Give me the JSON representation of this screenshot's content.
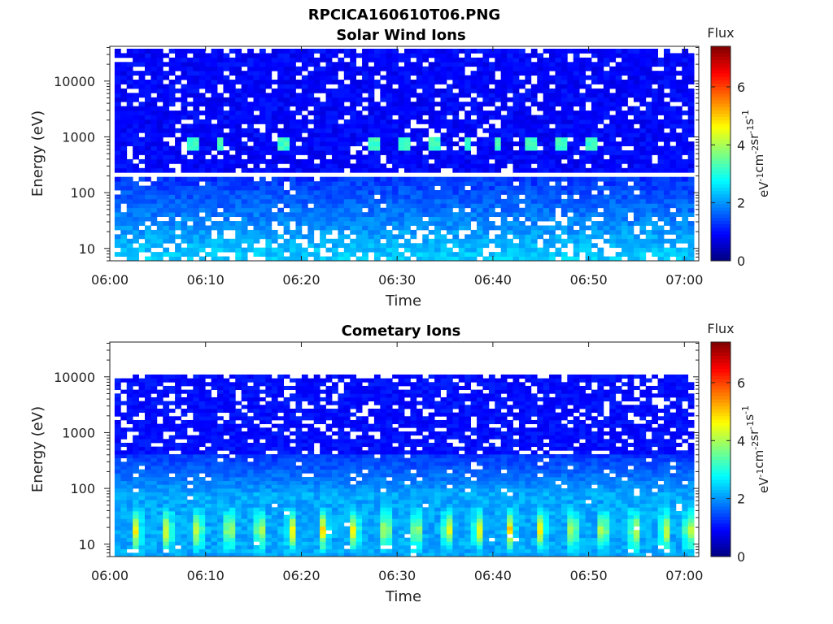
{
  "figure": {
    "title": "RPCICA160610T06.PNG"
  },
  "chart_data": [
    {
      "type": "heatmap",
      "title": "Solar Wind Ions",
      "xlabel": "Time",
      "ylabel": "Energy (eV)",
      "x_ticks": [
        "06:00",
        "06:10",
        "06:20",
        "06:30",
        "06:40",
        "06:50",
        "07:00"
      ],
      "x_range_minutes": [
        0,
        61.5
      ],
      "y_scale": "log",
      "y_ticks": [
        10,
        100,
        1000,
        10000
      ],
      "y_tick_labels": [
        "10",
        "100",
        "1000",
        "10000"
      ],
      "y_range": [
        6,
        42000
      ],
      "data_extent": {
        "x": [
          0.5,
          61
        ],
        "y": [
          6,
          38000
        ]
      },
      "colorbar": {
        "label": "Flux",
        "units": "eV-1cm-2sr-1s-1",
        "range": [
          0,
          7.4
        ],
        "ticks": [
          0,
          2,
          4,
          6
        ],
        "colormap": "jet"
      },
      "features": {
        "gap_energy_eV": 200,
        "bursts": {
          "energy_eV": 800,
          "times_min": [
            8.5,
            11.6,
            18.3,
            27.6,
            30.6,
            34.1,
            37.3,
            40.5,
            43.8,
            47.1,
            50.2
          ],
          "peak_flux": 3.4
        },
        "low_energy_flux": 1.9,
        "high_energy_flux": 0.7
      }
    },
    {
      "type": "heatmap",
      "title": "Cometary Ions",
      "xlabel": "Time",
      "ylabel": "Energy (eV)",
      "x_ticks": [
        "06:00",
        "06:10",
        "06:20",
        "06:30",
        "06:40",
        "06:50",
        "07:00"
      ],
      "x_range_minutes": [
        0,
        61.5
      ],
      "y_scale": "log",
      "y_ticks": [
        10,
        100,
        1000,
        10000
      ],
      "y_tick_labels": [
        "10",
        "100",
        "1000",
        "10000"
      ],
      "y_range": [
        6,
        42000
      ],
      "data_extent": {
        "x": [
          0.5,
          61
        ],
        "y": [
          6,
          11000
        ]
      },
      "colorbar": {
        "label": "Flux",
        "units": "eV-1cm-2sr-1s-1",
        "range": [
          0,
          7.4
        ],
        "ticks": [
          0,
          2,
          4,
          6
        ],
        "colormap": "jet"
      },
      "features": {
        "peak_energy_eV": 18,
        "peak_times_min": [
          2.8,
          6.0,
          9.2,
          12.5,
          15.7,
          19.0,
          22.3,
          25.5,
          28.8,
          32.0,
          35.3,
          38.5,
          41.8,
          45.0,
          48.3,
          51.5,
          54.8,
          58.0,
          60.5
        ],
        "peak_flux": 5.2,
        "high_energy_flux": 0.8
      }
    }
  ]
}
